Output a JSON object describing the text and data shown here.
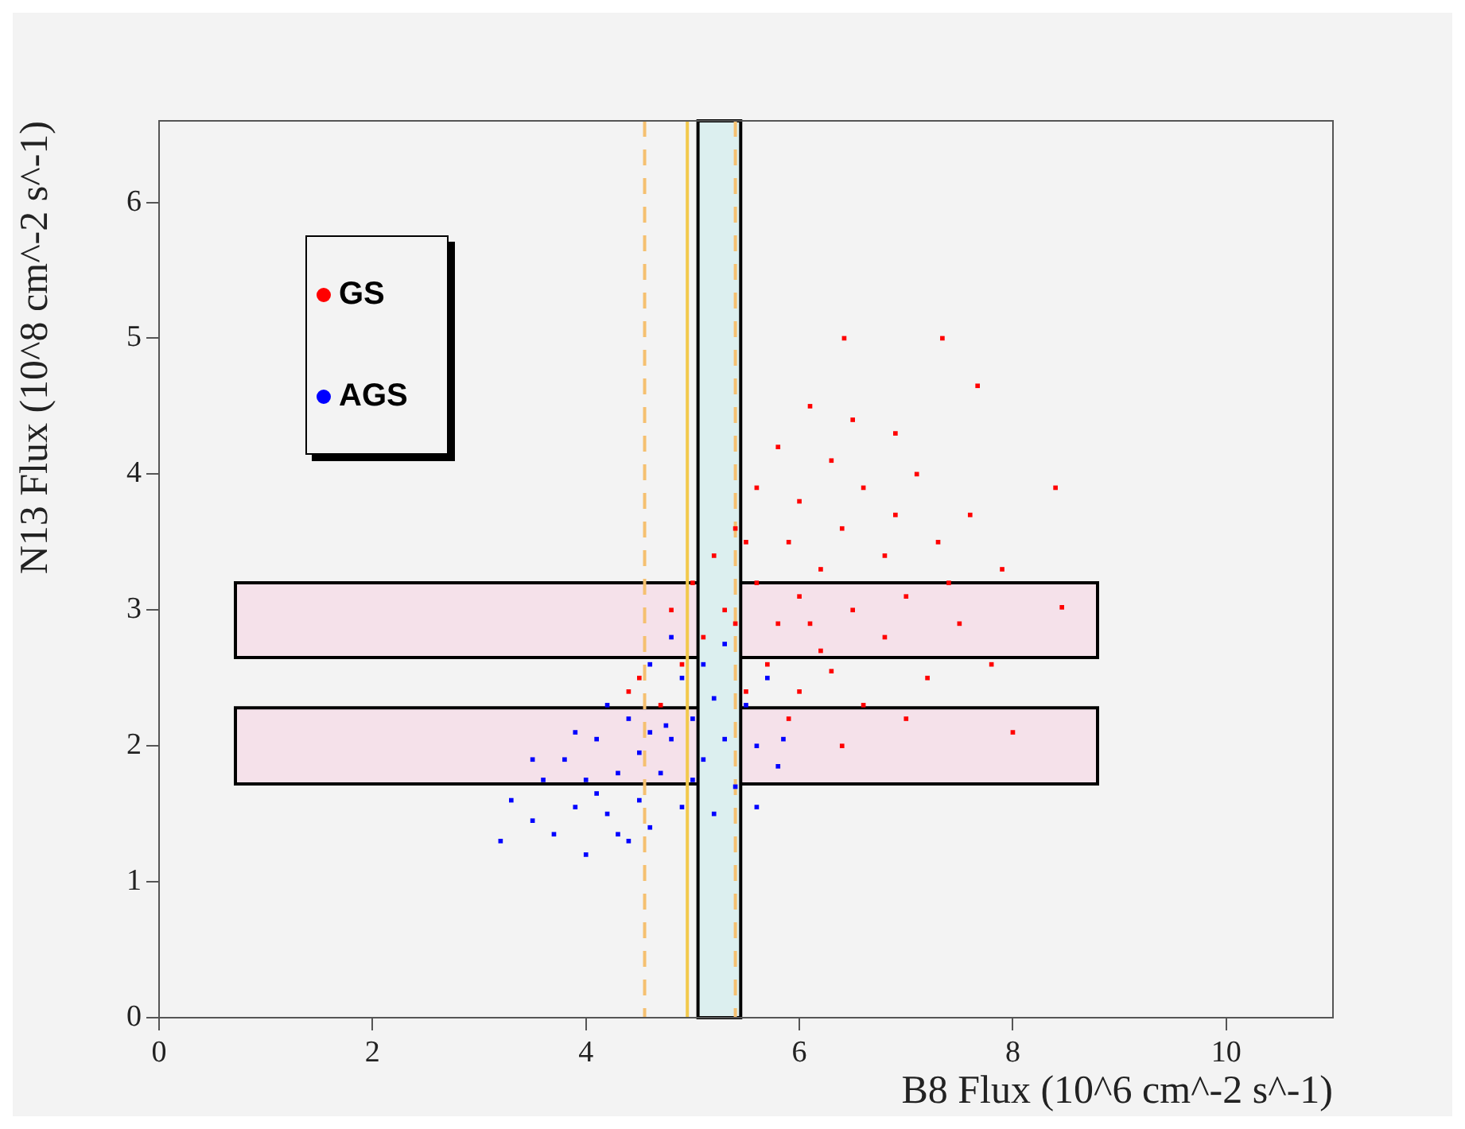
{
  "chart_data": {
    "type": "scatter",
    "xlabel": "B8 Flux (10^6 cm^-2 s^-1)",
    "ylabel": "N13 Flux (10^8 cm^-2 s^-1)",
    "xlim": [
      0,
      11
    ],
    "ylim": [
      0,
      6.6
    ],
    "xticks": [
      0,
      2,
      4,
      6,
      8,
      10
    ],
    "yticks": [
      0,
      1,
      2,
      3,
      4,
      5,
      6
    ],
    "grid": false,
    "legend": "top left",
    "marker": "square",
    "series": [
      {
        "name": "GS",
        "color": "#ff0000",
        "x": [
          6.42,
          7.34,
          7.67,
          6.1,
          6.5,
          5.8,
          6.9,
          7.1,
          6.3,
          5.6,
          8.4,
          7.6,
          6.0,
          6.6,
          5.4,
          7.3,
          5.9,
          6.4,
          6.8,
          5.2,
          7.9,
          6.2,
          5.6,
          7.0,
          6.0,
          5.8,
          6.5,
          5.3,
          7.5,
          8.46,
          6.8,
          5.1,
          6.2,
          5.7,
          4.9,
          7.2,
          6.0,
          5.5,
          4.7,
          6.6,
          5.9,
          4.5,
          7.8,
          8.0,
          6.4,
          5.4,
          6.9,
          5.0,
          4.8,
          7.4,
          6.1,
          5.5,
          4.4,
          7.0,
          6.3
        ],
        "values": [
          5.0,
          5.0,
          4.65,
          4.5,
          4.4,
          4.2,
          4.3,
          4.0,
          4.1,
          3.9,
          3.9,
          3.7,
          3.8,
          3.9,
          3.6,
          3.5,
          3.5,
          3.6,
          3.4,
          3.4,
          3.3,
          3.3,
          3.2,
          3.1,
          3.1,
          2.9,
          3.0,
          3.0,
          2.9,
          3.02,
          2.8,
          2.8,
          2.7,
          2.6,
          2.6,
          2.5,
          2.4,
          2.4,
          2.3,
          2.3,
          2.2,
          2.5,
          2.6,
          2.1,
          2.0,
          2.9,
          3.7,
          3.2,
          3.0,
          3.2,
          2.9,
          3.5,
          2.4,
          2.2,
          2.55
        ]
      },
      {
        "name": "AGS",
        "color": "#0000ff",
        "x": [
          3.2,
          3.3,
          3.5,
          3.6,
          3.7,
          3.8,
          3.9,
          4.0,
          4.0,
          4.1,
          4.2,
          4.3,
          4.3,
          4.4,
          4.5,
          4.5,
          4.6,
          4.75,
          4.7,
          4.8,
          4.9,
          4.9,
          5.0,
          5.0,
          5.1,
          5.1,
          5.2,
          5.3,
          5.3,
          5.4,
          5.5,
          5.6,
          5.7,
          5.8,
          5.85,
          4.2,
          3.9,
          4.6,
          4.4,
          5.2,
          3.5,
          4.8,
          5.6,
          4.1,
          4.6
        ],
        "values": [
          1.3,
          1.6,
          1.45,
          1.75,
          1.35,
          1.9,
          1.55,
          1.2,
          1.75,
          2.05,
          1.5,
          1.8,
          1.35,
          2.2,
          1.6,
          1.95,
          1.4,
          2.15,
          1.8,
          2.05,
          1.55,
          2.5,
          2.2,
          1.75,
          2.6,
          1.9,
          2.35,
          2.05,
          2.75,
          1.7,
          2.3,
          2.0,
          2.5,
          1.85,
          2.05,
          2.3,
          2.1,
          2.6,
          1.3,
          1.5,
          1.9,
          2.8,
          1.55,
          1.65,
          2.1
        ]
      }
    ],
    "bands": [
      {
        "axis": "y",
        "from": 2.65,
        "to": 3.2,
        "color": "#f5e1ea"
      },
      {
        "axis": "y",
        "from": 1.72,
        "to": 2.28,
        "color": "#f5e1ea"
      },
      {
        "axis": "x",
        "from": 5.05,
        "to": 5.45,
        "color": "#dcefef"
      }
    ],
    "ref_lines": [
      {
        "axis": "x",
        "value": 4.55,
        "color": "#f5c070",
        "line_style": "dashed"
      },
      {
        "axis": "x",
        "value": 4.95,
        "color": "#f2c94c",
        "line_style": "solid"
      },
      {
        "axis": "x",
        "value": 5.4,
        "color": "#f5c070",
        "line_style": "dashed"
      }
    ]
  }
}
